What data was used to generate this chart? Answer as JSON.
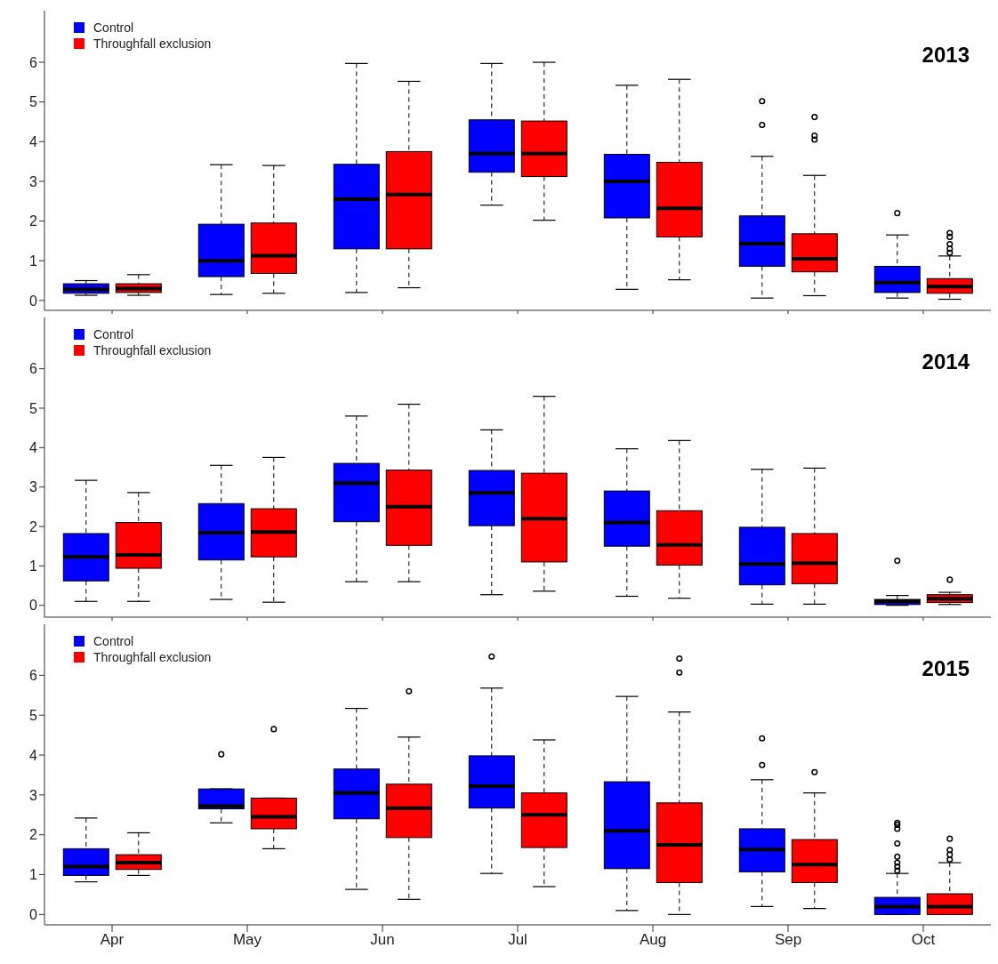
{
  "chart_data": [
    {
      "type": "box",
      "title": "2013",
      "categories": [
        null,
        null,
        null,
        null,
        null,
        null,
        null
      ],
      "ylim": [
        -0.25,
        7.3
      ],
      "yticks": [
        0,
        1,
        2,
        3,
        4,
        5,
        6
      ],
      "legend": "top left",
      "series": [
        {
          "name": "Control",
          "color": "#0000ff",
          "boxes": [
            {
              "low": 0.13,
              "q1": 0.18,
              "median": 0.28,
              "q3": 0.42,
              "high": 0.5
            },
            {
              "low": 0.15,
              "q1": 0.6,
              "median": 1.0,
              "q3": 1.92,
              "high": 3.42
            },
            {
              "low": 0.2,
              "q1": 1.3,
              "median": 2.55,
              "q3": 3.43,
              "high": 5.97
            },
            {
              "low": 2.4,
              "q1": 3.23,
              "median": 3.7,
              "q3": 4.55,
              "high": 5.97
            },
            {
              "low": 0.28,
              "q1": 2.08,
              "median": 3.0,
              "q3": 3.68,
              "high": 5.42
            },
            {
              "low": 0.06,
              "q1": 0.86,
              "median": 1.43,
              "q3": 2.13,
              "high": 3.63,
              "outliers": [
                4.42,
                5.02
              ]
            },
            {
              "low": 0.06,
              "q1": 0.2,
              "median": 0.45,
              "q3": 0.86,
              "high": 1.65,
              "outliers": [
                2.2
              ]
            }
          ]
        },
        {
          "name": "Throughfall exclusion",
          "color": "#ff0000",
          "boxes": [
            {
              "low": 0.13,
              "q1": 0.2,
              "median": 0.3,
              "q3": 0.42,
              "high": 0.65
            },
            {
              "low": 0.18,
              "q1": 0.68,
              "median": 1.13,
              "q3": 1.95,
              "high": 3.4
            },
            {
              "low": 0.32,
              "q1": 1.3,
              "median": 2.67,
              "q3": 3.75,
              "high": 5.52
            },
            {
              "low": 2.02,
              "q1": 3.12,
              "median": 3.7,
              "q3": 4.52,
              "high": 6.0
            },
            {
              "low": 0.52,
              "q1": 1.6,
              "median": 2.32,
              "q3": 3.48,
              "high": 5.57
            },
            {
              "low": 0.12,
              "q1": 0.72,
              "median": 1.05,
              "q3": 1.68,
              "high": 3.15,
              "outliers": [
                4.05,
                4.15,
                4.62
              ]
            },
            {
              "low": 0.03,
              "q1": 0.18,
              "median": 0.35,
              "q3": 0.55,
              "high": 1.12,
              "outliers": [
                1.2,
                1.3,
                1.42,
                1.6,
                1.7
              ]
            }
          ]
        }
      ]
    },
    {
      "type": "box",
      "title": "2014",
      "categories": [
        null,
        null,
        null,
        null,
        null,
        null,
        null
      ],
      "ylim": [
        -0.3,
        7.3
      ],
      "yticks": [
        0,
        1,
        2,
        3,
        4,
        5,
        6
      ],
      "legend": "top left",
      "series": [
        {
          "name": "Control",
          "color": "#0000ff",
          "boxes": [
            {
              "low": 0.1,
              "q1": 0.62,
              "median": 1.23,
              "q3": 1.82,
              "high": 3.17
            },
            {
              "low": 0.15,
              "q1": 1.15,
              "median": 1.84,
              "q3": 2.58,
              "high": 3.55
            },
            {
              "low": 0.6,
              "q1": 2.12,
              "median": 3.1,
              "q3": 3.6,
              "high": 4.8
            },
            {
              "low": 0.27,
              "q1": 2.02,
              "median": 2.85,
              "q3": 3.42,
              "high": 4.45
            },
            {
              "low": 0.23,
              "q1": 1.5,
              "median": 2.1,
              "q3": 2.9,
              "high": 3.97
            },
            {
              "low": 0.03,
              "q1": 0.52,
              "median": 1.05,
              "q3": 1.98,
              "high": 3.45
            },
            {
              "low": 0.0,
              "q1": 0.02,
              "median": 0.1,
              "q3": 0.15,
              "high": 0.25,
              "outliers": [
                1.13
              ]
            }
          ]
        },
        {
          "name": "Throughfall exclusion",
          "color": "#ff0000",
          "boxes": [
            {
              "low": 0.1,
              "q1": 0.94,
              "median": 1.28,
              "q3": 2.1,
              "high": 2.86
            },
            {
              "low": 0.08,
              "q1": 1.23,
              "median": 1.86,
              "q3": 2.45,
              "high": 3.75
            },
            {
              "low": 0.6,
              "q1": 1.52,
              "median": 2.5,
              "q3": 3.43,
              "high": 5.1
            },
            {
              "low": 0.36,
              "q1": 1.1,
              "median": 2.2,
              "q3": 3.35,
              "high": 5.3
            },
            {
              "low": 0.18,
              "q1": 1.02,
              "median": 1.53,
              "q3": 2.4,
              "high": 4.18
            },
            {
              "low": 0.03,
              "q1": 0.55,
              "median": 1.07,
              "q3": 1.82,
              "high": 3.48
            },
            {
              "low": 0.02,
              "q1": 0.07,
              "median": 0.17,
              "q3": 0.27,
              "high": 0.33,
              "outliers": [
                0.65
              ]
            }
          ]
        }
      ]
    },
    {
      "type": "box",
      "title": "2015",
      "categories": [
        "Apr",
        "May",
        "Jun",
        "Jul",
        "Aug",
        "Sep",
        "Oct"
      ],
      "ylim": [
        -0.26,
        7.28
      ],
      "yticks": [
        0,
        1,
        2,
        3,
        4,
        5,
        6
      ],
      "legend": "top left",
      "series": [
        {
          "name": "Control",
          "color": "#0000ff",
          "boxes": [
            {
              "low": 0.82,
              "q1": 0.98,
              "median": 1.2,
              "q3": 1.65,
              "high": 2.42
            },
            {
              "low": 2.3,
              "q1": 2.65,
              "median": 2.72,
              "q3": 3.15,
              "high": 3.15,
              "outliers": [
                4.02
              ]
            },
            {
              "low": 0.63,
              "q1": 2.4,
              "median": 3.05,
              "q3": 3.65,
              "high": 5.17
            },
            {
              "low": 1.03,
              "q1": 2.67,
              "median": 3.22,
              "q3": 3.98,
              "high": 5.68,
              "outliers": [
                6.47
              ]
            },
            {
              "low": 0.1,
              "q1": 1.15,
              "median": 2.1,
              "q3": 3.33,
              "high": 5.47
            },
            {
              "low": 0.2,
              "q1": 1.07,
              "median": 1.63,
              "q3": 2.15,
              "high": 3.38,
              "outliers": [
                3.75,
                4.42
              ]
            },
            {
              "low": 0.0,
              "q1": 0.0,
              "median": 0.2,
              "q3": 0.43,
              "high": 1.03,
              "outliers": [
                1.1,
                1.2,
                1.3,
                1.45,
                1.78,
                2.15,
                2.25,
                2.3
              ]
            }
          ]
        },
        {
          "name": "Throughfall exclusion",
          "color": "#ff0000",
          "boxes": [
            {
              "low": 0.98,
              "q1": 1.13,
              "median": 1.3,
              "q3": 1.5,
              "high": 2.05
            },
            {
              "low": 1.65,
              "q1": 2.15,
              "median": 2.45,
              "q3": 2.92,
              "high": 2.92,
              "outliers": [
                4.65
              ]
            },
            {
              "low": 0.38,
              "q1": 1.93,
              "median": 2.67,
              "q3": 3.27,
              "high": 4.45,
              "outliers": [
                5.6
              ]
            },
            {
              "low": 0.7,
              "q1": 1.68,
              "median": 2.5,
              "q3": 3.05,
              "high": 4.38
            },
            {
              "low": 0.0,
              "q1": 0.8,
              "median": 1.75,
              "q3": 2.8,
              "high": 5.08,
              "outliers": [
                6.07,
                6.42
              ]
            },
            {
              "low": 0.15,
              "q1": 0.8,
              "median": 1.25,
              "q3": 1.88,
              "high": 3.05,
              "outliers": [
                3.57
              ]
            },
            {
              "low": 0.0,
              "q1": 0.0,
              "median": 0.2,
              "q3": 0.52,
              "high": 1.3,
              "outliers": [
                1.38,
                1.5,
                1.62,
                1.9
              ]
            }
          ]
        }
      ]
    }
  ]
}
